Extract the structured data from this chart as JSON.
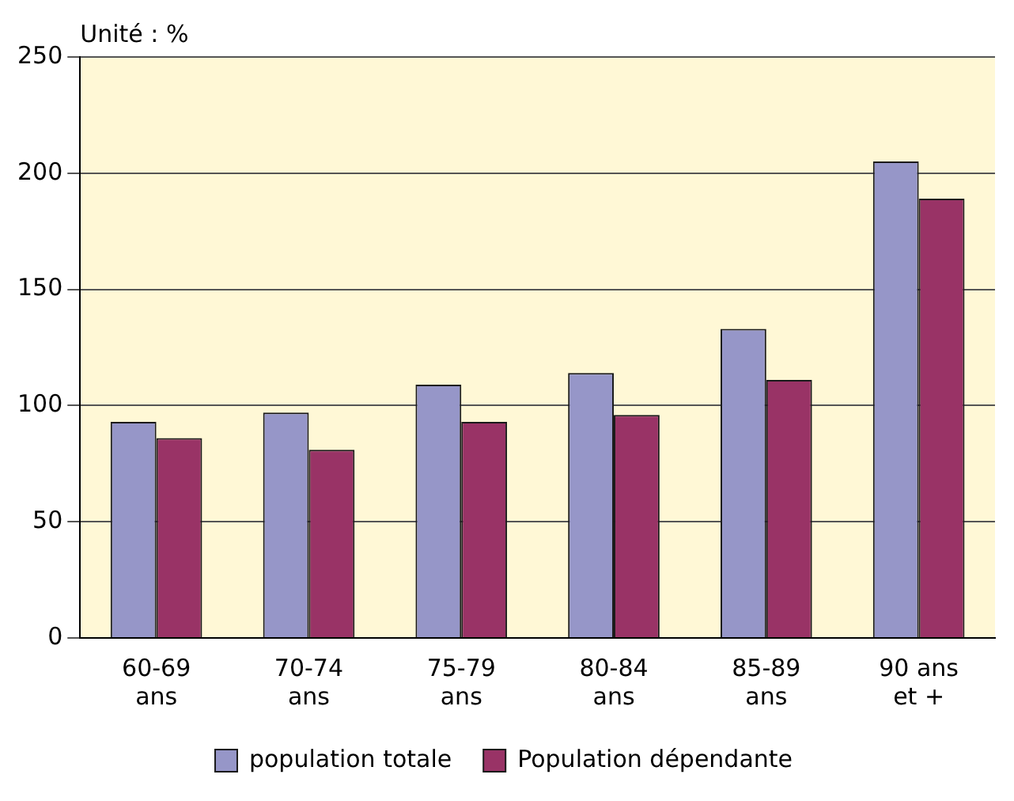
{
  "chart_data": {
    "type": "bar",
    "ylabel": "Unité : %",
    "categories": [
      "60-69\nans",
      "70-74\nans",
      "75-79\nans",
      "80-84\nans",
      "85-89\nans",
      "90 ans\net +"
    ],
    "series": [
      {
        "name": "population totale",
        "color": "#9696c8",
        "values": [
          93,
          97,
          109,
          114,
          133,
          205
        ]
      },
      {
        "name": "Population dépendante",
        "color": "#993366",
        "values": [
          86,
          81,
          93,
          96,
          111,
          189
        ]
      }
    ],
    "ylim": [
      0,
      250
    ],
    "yticks": [
      0,
      50,
      100,
      150,
      200,
      250
    ],
    "grid": "y",
    "legend": "bottom"
  }
}
